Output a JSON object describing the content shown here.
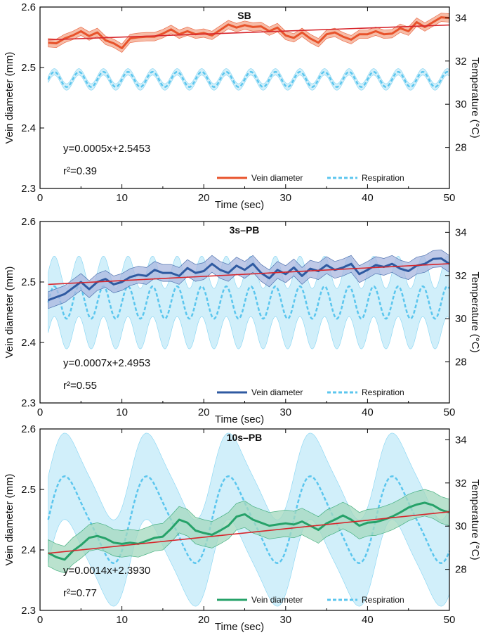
{
  "chart_data": [
    {
      "type": "line",
      "title": "SB",
      "xlabel": "Time (sec)",
      "ylabel": "Vein diameter (mm)",
      "y2label": "Temperature (°C)",
      "xlim": [
        0,
        50
      ],
      "ylim": [
        2.3,
        2.6
      ],
      "y2lim": [
        26.1,
        34.5
      ],
      "xticks": [
        "0",
        "10",
        "20",
        "30",
        "40",
        "50"
      ],
      "yticks": [
        "2.3",
        "2.4",
        "2.5",
        "2.6"
      ],
      "y2ticks": [
        "28",
        "30",
        "32",
        "34"
      ],
      "equation": "y=0.0005x+2.5453",
      "r2": "r²=0.39",
      "legend": [
        "Vein diameter",
        "Respiration"
      ],
      "colors": {
        "vein": "#e8532b",
        "vein_band": "#f3a68a",
        "resp": "#5bc6ee",
        "resp_band": "#c6ebf9",
        "fit": "#d7262c"
      },
      "fit": {
        "slope": 0.0005,
        "intercept": 2.5453
      },
      "series": [
        {
          "name": "Vein diameter",
          "x": [
            1,
            2,
            3,
            4,
            5,
            6,
            7,
            8,
            9,
            10,
            11,
            12,
            13,
            14,
            15,
            16,
            17,
            18,
            19,
            20,
            21,
            22,
            23,
            24,
            25,
            26,
            27,
            28,
            29,
            30,
            31,
            32,
            33,
            34,
            35,
            36,
            37,
            38,
            39,
            40,
            41,
            42,
            43,
            44,
            45,
            46,
            47,
            48,
            49,
            50
          ],
          "values": [
            2.541,
            2.54,
            2.548,
            2.553,
            2.56,
            2.552,
            2.558,
            2.545,
            2.54,
            2.532,
            2.548,
            2.55,
            2.551,
            2.551,
            2.556,
            2.563,
            2.555,
            2.56,
            2.555,
            2.557,
            2.553,
            2.562,
            2.571,
            2.566,
            2.57,
            2.567,
            2.568,
            2.56,
            2.566,
            2.553,
            2.549,
            2.558,
            2.548,
            2.541,
            2.555,
            2.558,
            2.551,
            2.546,
            2.555,
            2.555,
            2.56,
            2.555,
            2.556,
            2.565,
            2.56,
            2.575,
            2.567,
            2.575,
            2.583,
            2.582
          ],
          "band": 0.007
        },
        {
          "name": "Respiration",
          "x_start": 1,
          "x_end": 50,
          "mean_temp": 31.15,
          "amplitude_temp": 0.35,
          "period_sec": 3,
          "band_temp": 0.15
        }
      ]
    },
    {
      "type": "line",
      "title": "3s–PB",
      "xlabel": "Time (sec)",
      "ylabel": "Vein diameter (mm)",
      "y2label": "Temperature (°C)",
      "xlim": [
        0,
        50
      ],
      "ylim": [
        2.3,
        2.6
      ],
      "y2lim": [
        26.1,
        34.5
      ],
      "xticks": [
        "0",
        "10",
        "20",
        "30",
        "40",
        "50"
      ],
      "yticks": [
        "2.3",
        "2.4",
        "2.5",
        "2.6"
      ],
      "y2ticks": [
        "28",
        "30",
        "32",
        "34"
      ],
      "equation": "y=0.0007x+2.4953",
      "r2": "r²=0.55",
      "legend": [
        "Vein diameter",
        "Respiration"
      ],
      "colors": {
        "vein": "#2f5aa1",
        "vein_band": "#a9b7df",
        "resp": "#5bc6ee",
        "resp_band": "#c6ebf9",
        "fit": "#d7262c"
      },
      "fit": {
        "slope": 0.0007,
        "intercept": 2.4953
      },
      "series": [
        {
          "name": "Vein diameter",
          "x": [
            1,
            2,
            3,
            4,
            5,
            6,
            7,
            8,
            9,
            10,
            11,
            12,
            13,
            14,
            15,
            16,
            17,
            18,
            19,
            20,
            21,
            22,
            23,
            24,
            25,
            26,
            27,
            28,
            29,
            30,
            31,
            32,
            33,
            34,
            35,
            36,
            37,
            38,
            39,
            40,
            41,
            42,
            43,
            44,
            45,
            46,
            47,
            48,
            49,
            50
          ],
          "values": [
            2.47,
            2.475,
            2.48,
            2.49,
            2.5,
            2.488,
            2.5,
            2.505,
            2.496,
            2.5,
            2.508,
            2.512,
            2.51,
            2.52,
            2.515,
            2.515,
            2.51,
            2.523,
            2.515,
            2.518,
            2.53,
            2.52,
            2.515,
            2.527,
            2.52,
            2.53,
            2.515,
            2.506,
            2.52,
            2.513,
            2.524,
            2.51,
            2.522,
            2.518,
            2.528,
            2.52,
            2.524,
            2.53,
            2.513,
            2.52,
            2.528,
            2.525,
            2.53,
            2.522,
            2.518,
            2.527,
            2.53,
            2.538,
            2.539,
            2.53
          ],
          "band": 0.014
        },
        {
          "name": "Respiration",
          "x_start": 1,
          "x_end": 50,
          "mean_temp": 30.75,
          "amplitude_temp": 0.75,
          "period_sec": 3,
          "band_temp": 1.4
        }
      ]
    },
    {
      "type": "line",
      "title": "10s–PB",
      "xlabel": "Time (sec)",
      "ylabel": "Vein diameter (mm)",
      "y2label": "Temperature (°C)",
      "xlim": [
        0,
        50
      ],
      "ylim": [
        2.3,
        2.6
      ],
      "y2lim": [
        26.1,
        34.5
      ],
      "xticks": [
        "0",
        "10",
        "20",
        "30",
        "40",
        "50"
      ],
      "yticks": [
        "2.3",
        "2.4",
        "2.5",
        "2.6"
      ],
      "y2ticks": [
        "28",
        "30",
        "32",
        "34"
      ],
      "equation": "y=0.0014x+2.3930",
      "r2": "r²=0.77",
      "legend": [
        "Vein diameter",
        "Respiration"
      ],
      "colors": {
        "vein": "#26a269",
        "vein_band": "#a3d8bd",
        "resp": "#5bc6ee",
        "resp_band": "#c6ebf9",
        "fit": "#d7262c"
      },
      "fit": {
        "slope": 0.0014,
        "intercept": 2.393
      },
      "series": [
        {
          "name": "Vein diameter",
          "x": [
            1,
            2,
            3,
            4,
            5,
            6,
            7,
            8,
            9,
            10,
            11,
            12,
            13,
            14,
            15,
            16,
            17,
            18,
            19,
            20,
            21,
            22,
            23,
            24,
            25,
            26,
            27,
            28,
            29,
            30,
            31,
            32,
            33,
            34,
            35,
            36,
            37,
            38,
            39,
            40,
            41,
            42,
            43,
            44,
            45,
            46,
            47,
            48,
            49,
            50
          ],
          "values": [
            2.395,
            2.388,
            2.384,
            2.398,
            2.408,
            2.42,
            2.423,
            2.419,
            2.412,
            2.41,
            2.412,
            2.41,
            2.415,
            2.42,
            2.422,
            2.435,
            2.45,
            2.445,
            2.432,
            2.428,
            2.425,
            2.432,
            2.44,
            2.455,
            2.459,
            2.45,
            2.445,
            2.44,
            2.442,
            2.444,
            2.442,
            2.447,
            2.44,
            2.433,
            2.444,
            2.45,
            2.457,
            2.45,
            2.44,
            2.445,
            2.446,
            2.45,
            2.455,
            2.462,
            2.47,
            2.475,
            2.478,
            2.474,
            2.466,
            2.462
          ],
          "band": 0.022
        },
        {
          "name": "Respiration",
          "x_start": 1,
          "x_end": 50,
          "mean_temp": 30.3,
          "amplitude_temp": 1.9,
          "period_sec": 10,
          "band_temp": 2.0
        }
      ]
    }
  ]
}
